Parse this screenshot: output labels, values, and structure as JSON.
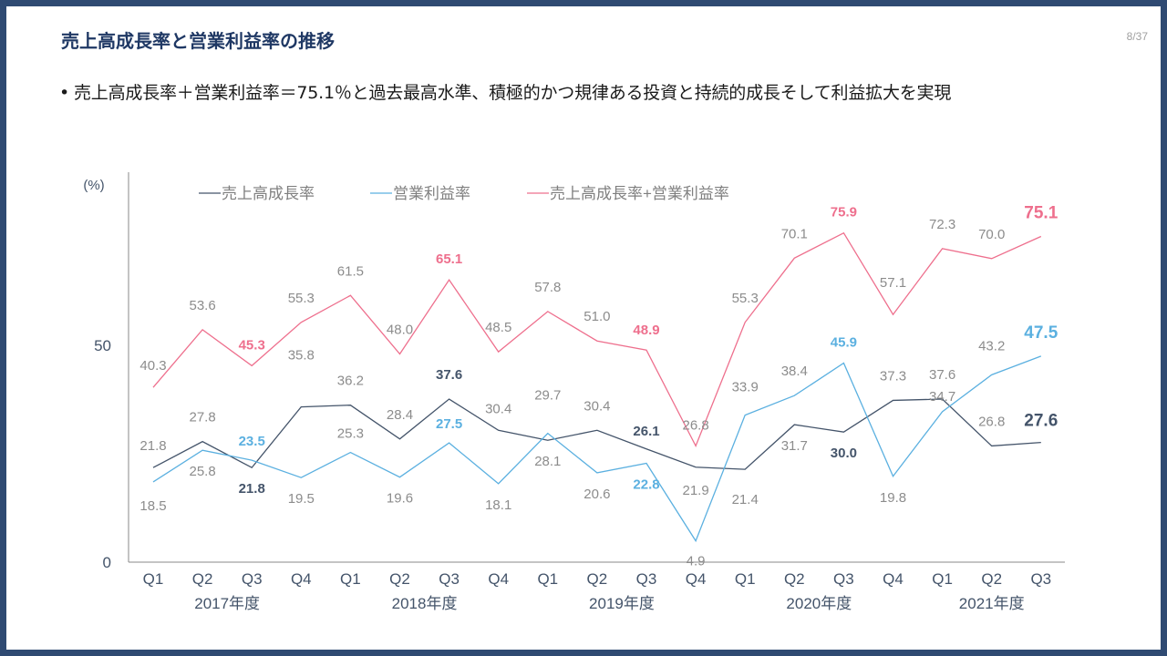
{
  "title": "売上高成長率と営業利益率の推移",
  "page_number": "8/37",
  "bullet": "売上高成長率＋営業利益率＝75.1％と過去最高水準、積極的かつ規律ある投資と持続的成長そして利益拡大を実現",
  "colors": {
    "navy": "#44546a",
    "blue": "#5bb0e0",
    "pink": "#ee6f8d",
    "frame": "#2f4a72"
  },
  "chart_data": {
    "type": "line",
    "unit_label": "(%)",
    "categories": [
      "Q1",
      "Q2",
      "Q3",
      "Q4",
      "Q1",
      "Q2",
      "Q3",
      "Q4",
      "Q1",
      "Q2",
      "Q3",
      "Q4",
      "Q1",
      "Q2",
      "Q3",
      "Q4",
      "Q1",
      "Q2",
      "Q3"
    ],
    "year_groups": [
      {
        "label": "2017年度",
        "start": 0,
        "end": 3
      },
      {
        "label": "2018年度",
        "start": 4,
        "end": 7
      },
      {
        "label": "2019年度",
        "start": 8,
        "end": 11
      },
      {
        "label": "2020年度",
        "start": 12,
        "end": 15
      },
      {
        "label": "2021年度",
        "start": 16,
        "end": 18
      }
    ],
    "y_ticks": [
      0,
      50
    ],
    "ylim": [
      0,
      90
    ],
    "legend_position": "top-left",
    "series": [
      {
        "name": "売上高成長率",
        "color": "#44546a",
        "values": [
          21.8,
          27.8,
          21.8,
          35.8,
          36.2,
          28.4,
          37.6,
          30.4,
          28.1,
          30.4,
          26.1,
          21.9,
          21.4,
          31.7,
          30.0,
          37.3,
          37.6,
          26.8,
          27.6
        ],
        "highlight": [
          2,
          6,
          10,
          14,
          18
        ]
      },
      {
        "name": "営業利益率",
        "color": "#5bb0e0",
        "values": [
          18.5,
          25.8,
          23.5,
          19.5,
          25.3,
          19.6,
          27.5,
          18.1,
          29.7,
          20.6,
          22.8,
          4.9,
          33.9,
          38.4,
          45.9,
          19.8,
          34.7,
          43.2,
          47.5
        ],
        "highlight": [
          2,
          6,
          10,
          14,
          18
        ]
      },
      {
        "name": "売上高成長率+営業利益率",
        "color": "#ee6f8d",
        "values": [
          40.3,
          53.6,
          45.3,
          55.3,
          61.5,
          48.0,
          65.1,
          48.5,
          57.8,
          51.0,
          48.9,
          26.8,
          55.3,
          70.1,
          75.9,
          57.1,
          72.3,
          70.0,
          75.1
        ],
        "highlight": [
          2,
          6,
          10,
          14,
          18
        ]
      }
    ]
  }
}
